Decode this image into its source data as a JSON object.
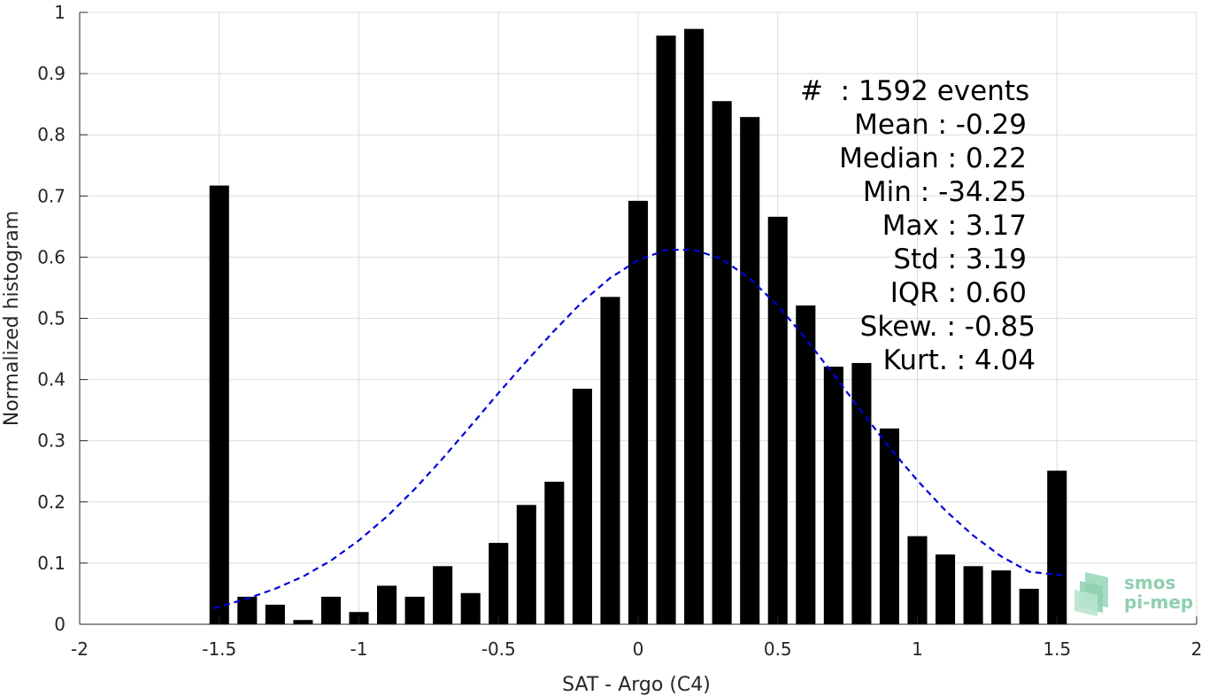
{
  "chart_data": {
    "type": "bar",
    "xlabel": "SAT - Argo (C4)",
    "ylabel": "Normalized histogram",
    "xlim": [
      -2,
      2
    ],
    "ylim": [
      0,
      1
    ],
    "grid": true,
    "xticks": [
      "-2",
      "-1.5",
      "-1",
      "-0.5",
      "0",
      "0.5",
      "1",
      "1.5",
      "2"
    ],
    "xtick_values": [
      -2,
      -1.5,
      -1,
      -0.5,
      0,
      0.5,
      1,
      1.5,
      2
    ],
    "yticks": [
      "0",
      "0.1",
      "0.2",
      "0.3",
      "0.4",
      "0.5",
      "0.6",
      "0.7",
      "0.8",
      "0.9",
      "1"
    ],
    "ytick_values": [
      0,
      0.1,
      0.2,
      0.3,
      0.4,
      0.5,
      0.6,
      0.7,
      0.8,
      0.9,
      1
    ],
    "bar_width": 0.07,
    "bar_color": "#000000",
    "bins": [
      -1.5,
      -1.4,
      -1.3,
      -1.2,
      -1.1,
      -1.0,
      -0.9,
      -0.8,
      -0.7,
      -0.6,
      -0.5,
      -0.4,
      -0.3,
      -0.2,
      -0.1,
      0.0,
      0.1,
      0.2,
      0.3,
      0.4,
      0.5,
      0.6,
      0.7,
      0.8,
      0.9,
      1.0,
      1.1,
      1.2,
      1.3,
      1.4,
      1.5
    ],
    "values": [
      0.717,
      0.045,
      0.032,
      0.007,
      0.045,
      0.02,
      0.063,
      0.045,
      0.095,
      0.051,
      0.133,
      0.195,
      0.233,
      0.385,
      0.535,
      0.692,
      0.962,
      0.973,
      0.855,
      0.829,
      0.666,
      0.521,
      0.421,
      0.427,
      0.32,
      0.144,
      0.114,
      0.095,
      0.088,
      0.058,
      0.251
    ],
    "fit_curve": {
      "style": "dashed",
      "color": "#0000dd",
      "x": [
        -1.52,
        -1.4,
        -1.3,
        -1.2,
        -1.1,
        -1.0,
        -0.9,
        -0.8,
        -0.7,
        -0.6,
        -0.5,
        -0.4,
        -0.3,
        -0.2,
        -0.1,
        0.0,
        0.1,
        0.2,
        0.3,
        0.4,
        0.5,
        0.6,
        0.7,
        0.8,
        0.9,
        1.0,
        1.1,
        1.2,
        1.3,
        1.4,
        1.52
      ],
      "y": [
        0.026,
        0.042,
        0.058,
        0.078,
        0.104,
        0.137,
        0.176,
        0.221,
        0.271,
        0.324,
        0.378,
        0.43,
        0.48,
        0.527,
        0.566,
        0.595,
        0.612,
        0.612,
        0.597,
        0.565,
        0.521,
        0.467,
        0.408,
        0.348,
        0.289,
        0.235,
        0.186,
        0.145,
        0.111,
        0.086,
        0.08
      ]
    },
    "annotations": [
      "#  : 1592 events",
      "Mean : -0.29",
      "Median : 0.22",
      "Min : -34.25",
      "Max : 3.17",
      "Std : 3.19",
      "IQR : 0.60",
      "Skew. : -0.85",
      "Kurt. : 4.04"
    ]
  },
  "logo": {
    "line1": "smos",
    "line2": "pi-mep",
    "color": "#8fcfb0"
  }
}
